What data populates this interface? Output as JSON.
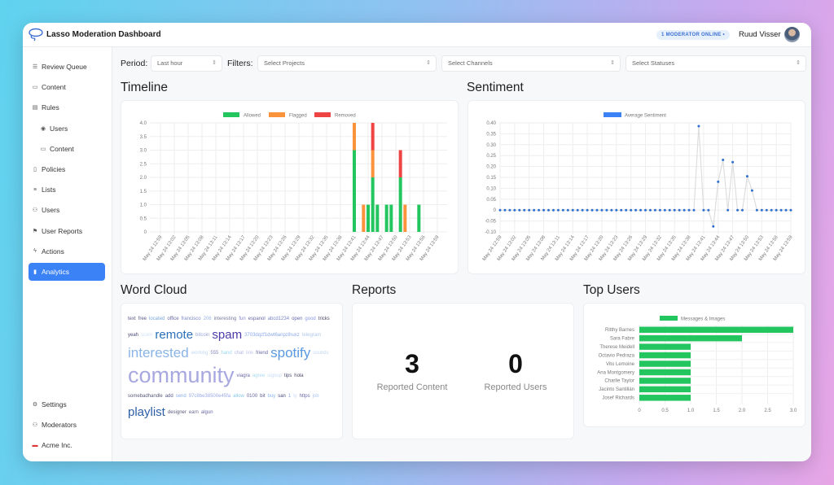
{
  "app": {
    "title": "Lasso Moderation Dashboard",
    "online_badge": "1 MODERATOR ONLINE •",
    "user_name": "Ruud Visser"
  },
  "sidebar": {
    "items": [
      {
        "label": "Review Queue",
        "icon": "queue-icon"
      },
      {
        "label": "Content",
        "icon": "content-icon"
      },
      {
        "label": "Rules",
        "icon": "rules-icon"
      },
      {
        "label": "Users",
        "icon": "user-circle-icon",
        "sub": true
      },
      {
        "label": "Content",
        "icon": "content-icon",
        "sub": true
      },
      {
        "label": "Policies",
        "icon": "document-icon"
      },
      {
        "label": "Lists",
        "icon": "list-icon"
      },
      {
        "label": "Users",
        "icon": "users-icon"
      },
      {
        "label": "User Reports",
        "icon": "report-icon"
      },
      {
        "label": "Actions",
        "icon": "bolt-icon"
      },
      {
        "label": "Analytics",
        "icon": "chart-icon",
        "active": true
      }
    ],
    "bottom": [
      {
        "label": "Settings",
        "icon": "gear-icon"
      },
      {
        "label": "Moderators",
        "icon": "users-icon"
      },
      {
        "label": "Acme Inc.",
        "icon": "flag-icon"
      }
    ]
  },
  "filters": {
    "period_label": "Period:",
    "period_value": "Last hour",
    "filters_label": "Filters:",
    "projects_placeholder": "Select Projects",
    "channels_placeholder": "Select Channels",
    "statuses_placeholder": "Select Statuses"
  },
  "sections": {
    "timeline": "Timeline",
    "sentiment": "Sentiment",
    "word_cloud": "Word Cloud",
    "reports": "Reports",
    "top_users": "Top Users"
  },
  "reports": {
    "content_count": "3",
    "content_label": "Reported Content",
    "users_count": "0",
    "users_label": "Reported Users"
  },
  "colors": {
    "allowed": "#22c55e",
    "flagged": "#fb923c",
    "removed": "#ef4444",
    "sentiment": "#3b82f6",
    "accent": "#3b82f6"
  },
  "chart_data": [
    {
      "type": "bar",
      "stacked": true,
      "ylim": [
        0,
        4
      ],
      "y_ticks": [
        "0",
        "0.5",
        "1.0",
        "1.5",
        "2.0",
        "2.5",
        "3.0",
        "3.5",
        "4.0"
      ],
      "legend_position": "top",
      "x_ticks": [
        "May 24 12:59",
        "May 24 13:02",
        "May 24 13:05",
        "May 24 13:08",
        "May 24 13:11",
        "May 24 13:14",
        "May 24 13:17",
        "May 24 13:20",
        "May 24 13:23",
        "May 24 13:26",
        "May 24 13:29",
        "May 24 13:32",
        "May 24 13:35",
        "May 24 13:38",
        "May 24 13:41",
        "May 24 13:44",
        "May 24 13:47",
        "May 24 13:50",
        "May 24 13:53",
        "May 24 13:56",
        "May 24 13:59"
      ],
      "x_range": [
        "May 24 12:59",
        "May 24 13:59"
      ],
      "points": [
        {
          "x": "13:41",
          "Allowed": 3,
          "Flagged": 1,
          "Removed": 0
        },
        {
          "x": "13:43",
          "Allowed": 0,
          "Flagged": 1,
          "Removed": 0
        },
        {
          "x": "13:44",
          "Allowed": 1,
          "Flagged": 0,
          "Removed": 0
        },
        {
          "x": "13:45",
          "Allowed": 2,
          "Flagged": 1,
          "Removed": 1
        },
        {
          "x": "13:46",
          "Allowed": 1,
          "Flagged": 0,
          "Removed": 0
        },
        {
          "x": "13:48",
          "Allowed": 1,
          "Flagged": 0,
          "Removed": 0
        },
        {
          "x": "13:49",
          "Allowed": 1,
          "Flagged": 0,
          "Removed": 0
        },
        {
          "x": "13:51",
          "Allowed": 2,
          "Flagged": 0,
          "Removed": 1
        },
        {
          "x": "13:52",
          "Allowed": 0,
          "Flagged": 1,
          "Removed": 0
        },
        {
          "x": "13:55",
          "Allowed": 1,
          "Flagged": 0,
          "Removed": 0
        }
      ],
      "series": [
        {
          "name": "Allowed"
        },
        {
          "name": "Flagged"
        },
        {
          "name": "Removed"
        }
      ]
    },
    {
      "type": "line",
      "ylim": [
        -0.1,
        0.4
      ],
      "y_ticks": [
        "-0.10",
        "-0.05",
        "0",
        "0.05",
        "0.10",
        "0.15",
        "0.20",
        "0.25",
        "0.30",
        "0.35",
        "0.40"
      ],
      "legend_position": "top",
      "x_ticks": [
        "May 24 12:59",
        "May 24 13:02",
        "May 24 13:05",
        "May 24 13:08",
        "May 24 13:11",
        "May 24 13:14",
        "May 24 13:17",
        "May 24 13:20",
        "May 24 13:23",
        "May 24 13:26",
        "May 24 13:29",
        "May 24 13:32",
        "May 24 13:35",
        "May 24 13:38",
        "May 24 13:41",
        "May 24 13:44",
        "May 24 13:47",
        "May 24 13:50",
        "May 24 13:53",
        "May 24 13:56",
        "May 24 13:59"
      ],
      "x_range": [
        "May 24 12:59",
        "May 24 13:59"
      ],
      "series": [
        {
          "name": "Average Sentiment",
          "values": [
            0,
            0,
            0,
            0,
            0,
            0,
            0,
            0,
            0,
            0,
            0,
            0,
            0,
            0,
            0,
            0,
            0,
            0,
            0,
            0,
            0,
            0,
            0,
            0,
            0,
            0,
            0,
            0,
            0,
            0,
            0,
            0,
            0,
            0,
            0,
            0,
            0,
            0,
            0,
            0,
            0,
            0.385,
            0,
            0,
            -0.075,
            0.13,
            0.23,
            0,
            0.22,
            0,
            0,
            0.155,
            0.09,
            0,
            0,
            0,
            0,
            0,
            0,
            0,
            0
          ]
        }
      ]
    },
    {
      "type": "bar",
      "orientation": "horizontal",
      "xlim": [
        0,
        3
      ],
      "x_ticks": [
        "0",
        "0.5",
        "1.0",
        "1.5",
        "2.0",
        "2.5",
        "3.0"
      ],
      "legend_position": "top",
      "categories": [
        "Ritthy Barnes",
        "Sara Fabre",
        "Therese Meidell",
        "Octavio Pedraza",
        "Vito Lemoine",
        "Ana Montgomery",
        "Charlie Taylor",
        "Jacinto Santillán",
        "Josef Richards"
      ],
      "series": [
        {
          "name": "Messages & Images",
          "values": [
            3,
            2,
            1,
            1,
            1,
            1,
            1,
            1,
            1
          ]
        }
      ]
    }
  ],
  "word_cloud": [
    {
      "t": "text",
      "w": 1,
      "c": "#5a5a8a"
    },
    {
      "t": "free",
      "w": 1,
      "c": "#5a5a8a"
    },
    {
      "t": "located",
      "w": 1,
      "c": "#7aa6e0"
    },
    {
      "t": "office",
      "w": 1,
      "c": "#6a6aa0"
    },
    {
      "t": "francisco",
      "w": 1,
      "c": "#7a88c8"
    },
    {
      "t": "206",
      "w": 1,
      "c": "#9ab8e8"
    },
    {
      "t": "interesting",
      "w": 1,
      "c": "#7a7aa0"
    },
    {
      "t": "fun",
      "w": 1,
      "c": "#8a8ad0"
    },
    {
      "t": "espanol",
      "w": 1,
      "c": "#6a6aa8"
    },
    {
      "t": "abcd1234",
      "w": 1,
      "c": "#7a88c8"
    },
    {
      "t": "open",
      "w": 1,
      "c": "#6a6ab0"
    },
    {
      "t": "good",
      "w": 1,
      "c": "#8a9ae0"
    },
    {
      "t": "tricks",
      "w": 1,
      "c": "#4a4a6a"
    },
    {
      "t": "yeah",
      "w": 1,
      "c": "#4a4a7a"
    },
    {
      "t": "scam",
      "w": 1,
      "c": "#d0e4f8"
    },
    {
      "t": "remote",
      "w": 4,
      "c": "#2d6fb8"
    },
    {
      "t": "bitcoin",
      "w": 1,
      "c": "#9aa8d8"
    },
    {
      "t": "spam",
      "w": 4,
      "c": "#4b3aa8"
    },
    {
      "t": "3703dqzf1dwt6anpzihuxz",
      "w": 1,
      "c": "#8aa8e8"
    },
    {
      "t": "telegram",
      "w": 1,
      "c": "#b0c8e8"
    },
    {
      "t": "interested",
      "w": 5,
      "c": "#8ab4e8"
    },
    {
      "t": "working",
      "w": 1,
      "c": "#c0d8f4"
    },
    {
      "t": "555",
      "w": 1,
      "c": "#8a8ac0"
    },
    {
      "t": "hand",
      "w": 1,
      "c": "#9ad8f0"
    },
    {
      "t": "chat",
      "w": 1,
      "c": "#b0b8e8"
    },
    {
      "t": "link",
      "w": 1,
      "c": "#c0c8f0"
    },
    {
      "t": "friend",
      "w": 1,
      "c": "#6a6aa8"
    },
    {
      "t": "spotify",
      "w": 5,
      "c": "#5a9ae0"
    },
    {
      "t": "sounds",
      "w": 1,
      "c": "#c0d8f0"
    },
    {
      "t": "community",
      "w": 6,
      "c": "#a8a8e0"
    },
    {
      "t": "viagra",
      "w": 1,
      "c": "#6a6aa8"
    },
    {
      "t": "agree",
      "w": 1,
      "c": "#a8dcf0"
    },
    {
      "t": "signup",
      "w": 1,
      "c": "#c8e0f4"
    },
    {
      "t": "tips",
      "w": 1,
      "c": "#4a4a7a"
    },
    {
      "t": "hola",
      "w": 1,
      "c": "#4a4a6a"
    },
    {
      "t": "somebadhandle",
      "w": 1,
      "c": "#5a5a7a"
    },
    {
      "t": "add",
      "w": 1,
      "c": "#5a5a8a"
    },
    {
      "t": "send",
      "w": 1,
      "c": "#8ab0e8"
    },
    {
      "t": "97c8be38500e45fa",
      "w": 1,
      "c": "#9aaae8"
    },
    {
      "t": "allow",
      "w": 1,
      "c": "#8ac8e8"
    },
    {
      "t": "0100",
      "w": 1,
      "c": "#6a6aa0"
    },
    {
      "t": "bit",
      "w": 1,
      "c": "#5a5a8a"
    },
    {
      "t": "buy",
      "w": 1,
      "c": "#8ab8e8"
    },
    {
      "t": "san",
      "w": 1,
      "c": "#4a4a7a"
    },
    {
      "t": "1",
      "w": 1,
      "c": "#8aa8e0"
    },
    {
      "t": "ly",
      "w": 1,
      "c": "#c8d8f4"
    },
    {
      "t": "https",
      "w": 1,
      "c": "#6a6aa8"
    },
    {
      "t": "job",
      "w": 1,
      "c": "#b0c8f0"
    },
    {
      "t": "playlist",
      "w": 4,
      "c": "#2d5fa8"
    },
    {
      "t": "designer",
      "w": 1,
      "c": "#5a5a7a"
    },
    {
      "t": "earn",
      "w": 1,
      "c": "#6a6a8a"
    },
    {
      "t": "algun",
      "w": 1,
      "c": "#6a6aa0"
    }
  ]
}
